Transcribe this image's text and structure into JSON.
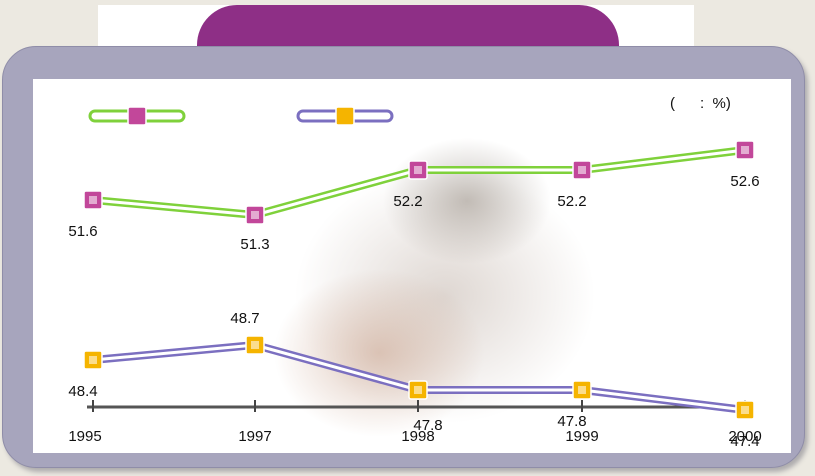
{
  "chart_data": {
    "type": "line",
    "categories": [
      "1995",
      "1997",
      "1998",
      "1999",
      "2000"
    ],
    "series": [
      {
        "values": [
          51.6,
          51.3,
          52.2,
          52.2,
          52.6
        ],
        "labels": [
          "51.6",
          "51.3",
          "52.2",
          "52.2",
          "52.6"
        ],
        "line_color": "#7fd13b",
        "marker_color": "#c2479a",
        "legend_name": ""
      },
      {
        "values": [
          48.4,
          48.7,
          47.8,
          47.8,
          47.4
        ],
        "labels": [
          "48.4",
          "48.7",
          "47.8",
          "47.8",
          "47.4"
        ],
        "line_color": "#7b6fc0",
        "marker_color": "#f5b400",
        "legend_name": ""
      }
    ],
    "unit_label": "(      :  %)",
    "title": "",
    "xlabel": "",
    "ylabel": ""
  },
  "colors": {
    "tab": "#8e2f86",
    "frame": "#a7a5bd",
    "axis": "#555555"
  }
}
